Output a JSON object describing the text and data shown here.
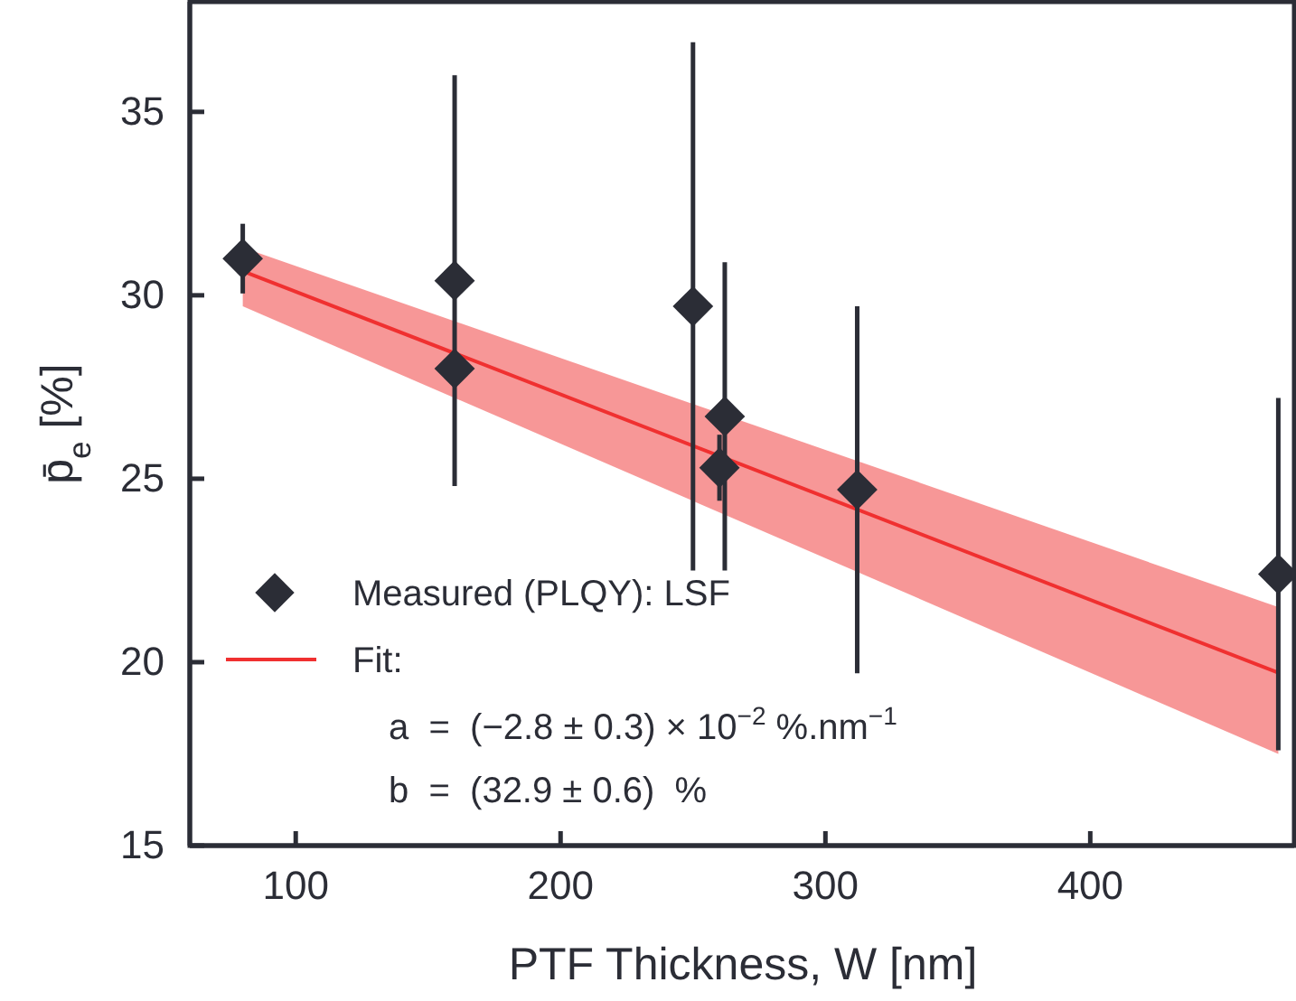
{
  "chart_data": {
    "type": "scatter",
    "xlabel": "PTF Thickness, W [nm]",
    "ylabel": "p̄$_{e}$ [%]",
    "xlim": [
      60,
      477
    ],
    "ylim": [
      15,
      38
    ],
    "xticks": [
      100,
      200,
      300,
      400
    ],
    "yticks": [
      15,
      20,
      25,
      30,
      35
    ],
    "grid": false,
    "legend": "bottom left",
    "series": [
      {
        "name": "Measured (PLQY): LSF",
        "marker": "diamond",
        "color": "#2b2d36",
        "x": [
          80,
          160,
          160,
          250,
          262,
          260,
          312,
          471
        ],
        "values": [
          31.0,
          30.4,
          28.0,
          29.7,
          26.7,
          25.3,
          24.7,
          22.4
        ],
        "errors": [
          0.95,
          5.6,
          null,
          7.2,
          4.2,
          0.9,
          5.0,
          4.8
        ]
      },
      {
        "name": "Fit:",
        "type": "line",
        "color": "#f03030",
        "x": [
          80,
          471
        ],
        "values": [
          30.66,
          19.71
        ],
        "lower": [
          29.7,
          17.5
        ],
        "upper": [
          31.3,
          21.5
        ]
      }
    ],
    "annotations": [
      "a  =  (−2.8 ± 0.3) × 10$^{−2}$ %.nm$^{−1}$",
      "b  =  (32.9 ± 0.6)  %"
    ]
  }
}
